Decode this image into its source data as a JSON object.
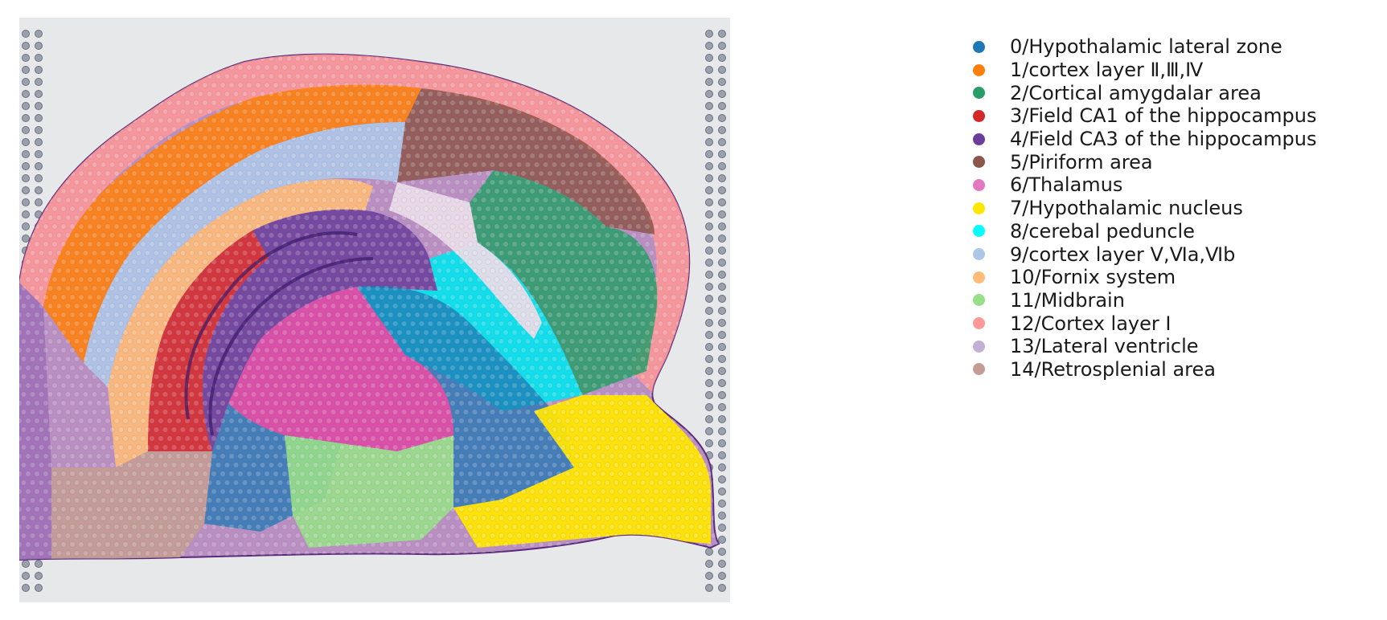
{
  "figure": {
    "description_icon": "brain-section-image"
  },
  "legend": {
    "items": [
      {
        "label": "0/Hypothalamic lateral zone",
        "color": "#1f77b4"
      },
      {
        "label": "1/cortex layer Ⅱ,Ⅲ,Ⅳ",
        "color": "#ff7f0e"
      },
      {
        "label": "2/Cortical amygdalar area",
        "color": "#279e68"
      },
      {
        "label": "3/Field CA1 of the hippocampus",
        "color": "#d62728"
      },
      {
        "label": "4/Field CA3 of the hippocampus",
        "color": "#6a3d9a"
      },
      {
        "label": "5/Piriform area",
        "color": "#8c564b"
      },
      {
        "label": "6/Thalamus",
        "color": "#e377c2"
      },
      {
        "label": "7/Hypothalamic nucleus",
        "color": "#ffe600"
      },
      {
        "label": "8/cerebal peduncle",
        "color": "#00ffff"
      },
      {
        "label": "9/cortex layer Ⅴ,Ⅵa,Ⅵb",
        "color": "#aec7e8"
      },
      {
        "label": "10/Fornix system",
        "color": "#ffbb78"
      },
      {
        "label": "11/Midbrain",
        "color": "#98df8a"
      },
      {
        "label": "12/Cortex layer Ⅰ",
        "color": "#ff9896"
      },
      {
        "label": "13/Lateral ventricle",
        "color": "#c5b0d5"
      },
      {
        "label": "14/Retrosplenial area",
        "color": "#c49c94"
      }
    ]
  }
}
